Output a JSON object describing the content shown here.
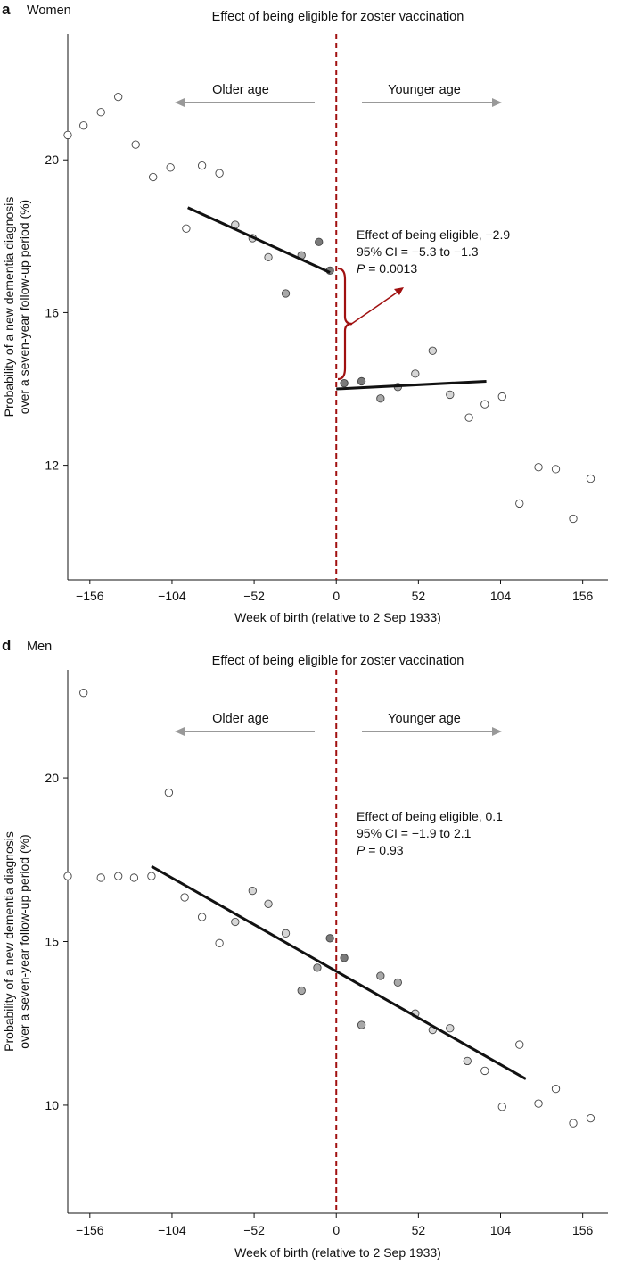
{
  "chart_data": [
    {
      "type": "scatter",
      "panel_label": "a",
      "subtitle": "Women",
      "title": "Effect of being eligible for zoster vaccination",
      "xlabel": "Week of birth (relative to 2 Sep 1933)",
      "ylabel_line1": "Probability of a new dementia diagnosis",
      "ylabel_line2": "over a seven-year follow-up period (%)",
      "x_ticks": [
        -156,
        -104,
        -52,
        0,
        52,
        104,
        156
      ],
      "x_tick_labels": [
        "−156",
        "−104",
        "−52",
        "0",
        "52",
        "104",
        "156"
      ],
      "y_ticks": [
        12,
        16,
        20
      ],
      "y_tick_labels": [
        "12",
        "16",
        "20"
      ],
      "xlim": [
        -170,
        172
      ],
      "ylim": [
        9,
        23.3
      ],
      "older_label": "Older age",
      "younger_label": "Younger age",
      "annotation": {
        "line1": "Effect of being eligible, −2.9",
        "line2": "95% CI = −5.3 to −1.3",
        "p_letter": "P",
        "p_value": " = 0.0013"
      },
      "has_bracket": true,
      "colors": {
        "cutoff": "#a01010",
        "arrow": "#999999",
        "fit": "#111111",
        "marker_edge": "#444444",
        "bracket": "#a01010"
      },
      "fit_lines": [
        {
          "x": [
            -94,
            -4
          ],
          "y": [
            18.75,
            17.05
          ]
        },
        {
          "x": [
            0,
            95
          ],
          "y": [
            14.0,
            14.2
          ]
        }
      ],
      "points": [
        {
          "x": -170,
          "y": 20.65,
          "shade": "white"
        },
        {
          "x": -160,
          "y": 20.9,
          "shade": "white"
        },
        {
          "x": -149,
          "y": 21.25,
          "shade": "white"
        },
        {
          "x": -138,
          "y": 21.65,
          "shade": "white"
        },
        {
          "x": -127,
          "y": 20.4,
          "shade": "white"
        },
        {
          "x": -116,
          "y": 19.55,
          "shade": "white"
        },
        {
          "x": -105,
          "y": 19.8,
          "shade": "white"
        },
        {
          "x": -95,
          "y": 18.2,
          "shade": "white"
        },
        {
          "x": -85,
          "y": 19.85,
          "shade": "white"
        },
        {
          "x": -74,
          "y": 19.65,
          "shade": "white"
        },
        {
          "x": -64,
          "y": 18.3,
          "shade": "light"
        },
        {
          "x": -53,
          "y": 17.95,
          "shade": "light"
        },
        {
          "x": -43,
          "y": 17.45,
          "shade": "light"
        },
        {
          "x": -32,
          "y": 16.5,
          "shade": "mid"
        },
        {
          "x": -22,
          "y": 17.5,
          "shade": "mid"
        },
        {
          "x": -11,
          "y": 17.85,
          "shade": "dark"
        },
        {
          "x": -4,
          "y": 17.1,
          "shade": "dark"
        },
        {
          "x": 5,
          "y": 14.15,
          "shade": "dark"
        },
        {
          "x": 16,
          "y": 14.2,
          "shade": "dark"
        },
        {
          "x": 28,
          "y": 13.75,
          "shade": "mid"
        },
        {
          "x": 39,
          "y": 14.05,
          "shade": "mid"
        },
        {
          "x": 50,
          "y": 14.4,
          "shade": "light"
        },
        {
          "x": 61,
          "y": 15.0,
          "shade": "light"
        },
        {
          "x": 72,
          "y": 13.85,
          "shade": "light"
        },
        {
          "x": 84,
          "y": 13.25,
          "shade": "white"
        },
        {
          "x": 94,
          "y": 13.6,
          "shade": "white"
        },
        {
          "x": 105,
          "y": 13.8,
          "shade": "white"
        },
        {
          "x": 116,
          "y": 11.0,
          "shade": "white"
        },
        {
          "x": 128,
          "y": 11.95,
          "shade": "white"
        },
        {
          "x": 139,
          "y": 11.9,
          "shade": "white"
        },
        {
          "x": 150,
          "y": 10.6,
          "shade": "white"
        },
        {
          "x": 161,
          "y": 11.65,
          "shade": "white"
        }
      ]
    },
    {
      "type": "scatter",
      "panel_label": "d",
      "subtitle": "Men",
      "title": "Effect of being eligible for zoster vaccination",
      "xlabel": "Week of birth (relative to 2 Sep 1933)",
      "ylabel_line1": "Probability of a new dementia diagnosis",
      "ylabel_line2": "over a seven-year follow-up period (%)",
      "x_ticks": [
        -156,
        -104,
        -52,
        0,
        52,
        104,
        156
      ],
      "x_tick_labels": [
        "−156",
        "−104",
        "−52",
        "0",
        "52",
        "104",
        "156"
      ],
      "y_ticks": [
        10,
        15,
        20
      ],
      "y_tick_labels": [
        "10",
        "15",
        "20"
      ],
      "xlim": [
        -170,
        172
      ],
      "ylim": [
        6.7,
        23.3
      ],
      "older_label": "Older age",
      "younger_label": "Younger age",
      "annotation": {
        "line1": "Effect of being eligible, 0.1",
        "line2": "95% CI = −1.9 to 2.1",
        "p_letter": "P",
        "p_value": " = 0.93"
      },
      "has_bracket": false,
      "colors": {
        "cutoff": "#a01010",
        "arrow": "#999999",
        "fit": "#111111",
        "marker_edge": "#444444"
      },
      "fit_lines": [
        {
          "x": [
            -117,
            120
          ],
          "y": [
            17.3,
            10.8
          ]
        }
      ],
      "points": [
        {
          "x": -170,
          "y": 17.0,
          "shade": "white"
        },
        {
          "x": -160,
          "y": 22.6,
          "shade": "white"
        },
        {
          "x": -149,
          "y": 16.95,
          "shade": "white"
        },
        {
          "x": -138,
          "y": 17.0,
          "shade": "white"
        },
        {
          "x": -128,
          "y": 16.95,
          "shade": "white"
        },
        {
          "x": -117,
          "y": 17.0,
          "shade": "white"
        },
        {
          "x": -106,
          "y": 19.55,
          "shade": "white"
        },
        {
          "x": -96,
          "y": 16.35,
          "shade": "white"
        },
        {
          "x": -85,
          "y": 15.75,
          "shade": "white"
        },
        {
          "x": -74,
          "y": 14.95,
          "shade": "white"
        },
        {
          "x": -64,
          "y": 15.6,
          "shade": "light"
        },
        {
          "x": -53,
          "y": 16.55,
          "shade": "light"
        },
        {
          "x": -43,
          "y": 16.15,
          "shade": "light"
        },
        {
          "x": -32,
          "y": 15.25,
          "shade": "light"
        },
        {
          "x": -22,
          "y": 13.5,
          "shade": "mid"
        },
        {
          "x": -12,
          "y": 14.2,
          "shade": "mid"
        },
        {
          "x": -4,
          "y": 15.1,
          "shade": "dark"
        },
        {
          "x": 5,
          "y": 14.5,
          "shade": "dark"
        },
        {
          "x": 16,
          "y": 12.45,
          "shade": "mid"
        },
        {
          "x": 28,
          "y": 13.95,
          "shade": "mid"
        },
        {
          "x": 39,
          "y": 13.75,
          "shade": "mid"
        },
        {
          "x": 50,
          "y": 12.8,
          "shade": "light"
        },
        {
          "x": 61,
          "y": 12.3,
          "shade": "light"
        },
        {
          "x": 72,
          "y": 12.35,
          "shade": "light"
        },
        {
          "x": 83,
          "y": 11.35,
          "shade": "light"
        },
        {
          "x": 94,
          "y": 11.05,
          "shade": "white"
        },
        {
          "x": 105,
          "y": 9.95,
          "shade": "white"
        },
        {
          "x": 116,
          "y": 11.85,
          "shade": "white"
        },
        {
          "x": 128,
          "y": 10.05,
          "shade": "white"
        },
        {
          "x": 139,
          "y": 10.5,
          "shade": "white"
        },
        {
          "x": 150,
          "y": 9.45,
          "shade": "white"
        },
        {
          "x": 161,
          "y": 9.6,
          "shade": "white"
        }
      ]
    }
  ]
}
